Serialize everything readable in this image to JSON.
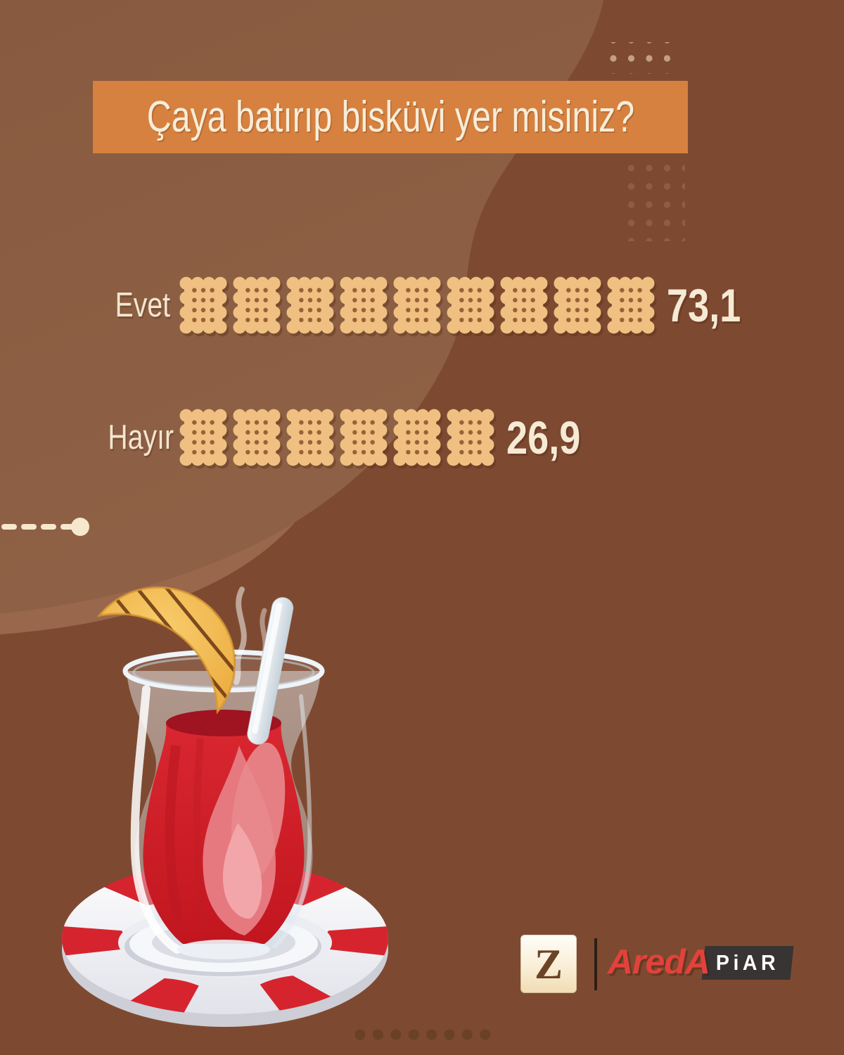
{
  "title": {
    "text": "Çaya batırıp bisküvi yer misiniz?"
  },
  "chart_data": {
    "type": "bar",
    "subtype": "pictogram",
    "title": "Çaya batırıp bisküvi yer misiniz?",
    "unit": "percent",
    "categories": [
      "Evet",
      "Hayır"
    ],
    "values": [
      73.1,
      26.9
    ],
    "value_labels": [
      "73,1",
      "26,9"
    ],
    "icon": "biscuit-icon",
    "icon_counts": [
      9,
      6
    ],
    "legend_position": "none",
    "colors": {
      "background_base": "#7D4A31",
      "background_blob": "#8B5C42",
      "banner": "#D6813F",
      "text_cream": "#F2E6D0",
      "biscuit_fill": "#EFC081",
      "biscuit_dots": "#9C6038",
      "tea_red": "#D6222B",
      "brand_red": "#E2423B"
    }
  },
  "rows": [
    {
      "label": "Evet",
      "value_label": "73,1",
      "icons": 9
    },
    {
      "label": "Hayır",
      "value_label": "26,9",
      "icons": 6
    }
  ],
  "footer": {
    "z_logo": "Z",
    "brand": "AredA",
    "brand_badge": "PiAR"
  }
}
